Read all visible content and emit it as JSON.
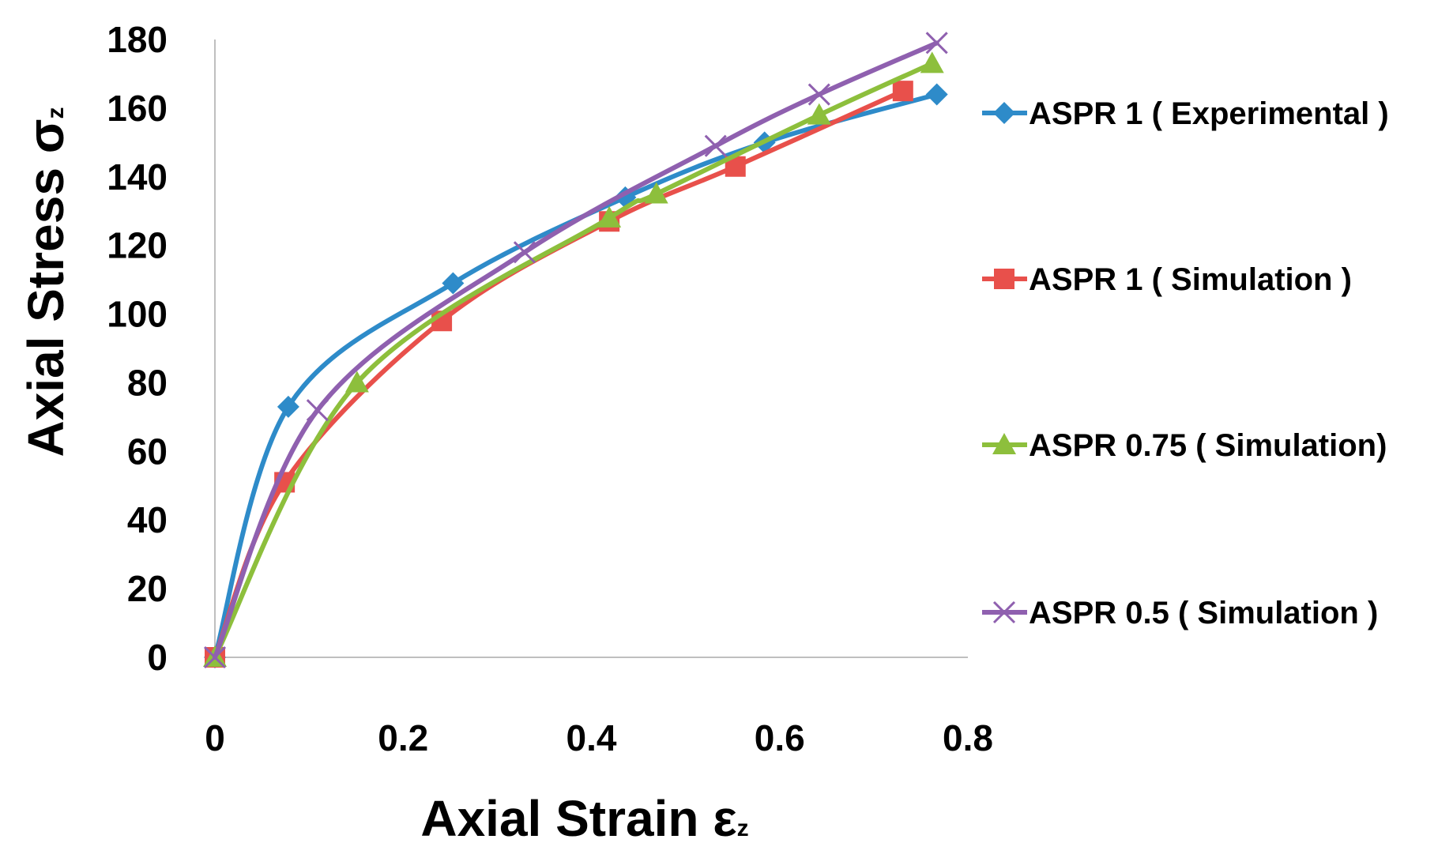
{
  "chart_data": {
    "type": "line",
    "title": "",
    "xlabel": "Axial Strain ε",
    "xlabel_sub": "z",
    "ylabel": "Axial Stress σ",
    "ylabel_sub": "z",
    "xlim": [
      0,
      0.8
    ],
    "ylim": [
      0,
      180
    ],
    "xticks": [
      "0",
      "0.2",
      "0.4",
      "0.6",
      "0.8"
    ],
    "xtick_values": [
      0,
      0.2,
      0.4,
      0.6,
      0.8
    ],
    "yticks": [
      "0",
      "20",
      "40",
      "60",
      "80",
      "100",
      "120",
      "140",
      "160",
      "180"
    ],
    "ytick_values": [
      0,
      20,
      40,
      60,
      80,
      100,
      120,
      140,
      160,
      180
    ],
    "grid": false,
    "smooth": true,
    "legend_position": "right",
    "series": [
      {
        "name": "ASPR 1 ( Experimental )",
        "color": "#2E8BC9",
        "marker": "diamond",
        "points": [
          [
            0,
            0
          ],
          [
            0.078,
            73
          ],
          [
            0.253,
            109
          ],
          [
            0.436,
            134
          ],
          [
            0.584,
            150
          ],
          [
            0.767,
            164
          ]
        ]
      },
      {
        "name": "ASPR 1 ( Simulation )",
        "color": "#E8504B",
        "marker": "square",
        "points": [
          [
            0,
            0
          ],
          [
            0.074,
            51
          ],
          [
            0.241,
            98
          ],
          [
            0.419,
            127
          ],
          [
            0.553,
            143
          ],
          [
            0.731,
            165
          ]
        ]
      },
      {
        "name": "ASPR  0.75 ( Simulation)",
        "color": "#8DBF3C",
        "marker": "triangle",
        "points": [
          [
            0,
            0
          ],
          [
            0.151,
            80
          ],
          [
            0.419,
            128
          ],
          [
            0.469,
            135
          ],
          [
            0.642,
            158
          ],
          [
            0.762,
            173
          ]
        ]
      },
      {
        "name": "ASPR  0.5 ( Simulation )",
        "color": "#8F60AF",
        "marker": "x",
        "points": [
          [
            0,
            0
          ],
          [
            0.109,
            72
          ],
          [
            0.329,
            118
          ],
          [
            0.532,
            149
          ],
          [
            0.642,
            164
          ],
          [
            0.767,
            179
          ]
        ]
      }
    ]
  }
}
